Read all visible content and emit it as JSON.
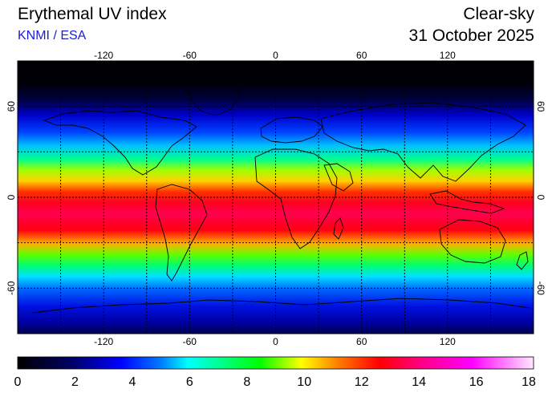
{
  "header": {
    "title": "Erythemal UV index",
    "source": "KNMI / ESA",
    "mode": "Clear-sky",
    "date": "31 October 2025"
  },
  "map": {
    "projection": "equirectangular",
    "lon_range": [
      -180,
      180
    ],
    "lat_range": [
      -90,
      90
    ],
    "lon_ticks": [
      "-120",
      "-60",
      "0",
      "60",
      "120"
    ],
    "lat_ticks": [
      "60",
      "0",
      "-60"
    ],
    "grid": true,
    "coastlines": true
  },
  "colorbar": {
    "ticks": [
      "0",
      "2",
      "4",
      "6",
      "8",
      "10",
      "12",
      "14",
      "16",
      "18"
    ],
    "min": 0,
    "max": 18
  },
  "colors": {
    "title": "#000000",
    "source": "#1b1bd6"
  }
}
